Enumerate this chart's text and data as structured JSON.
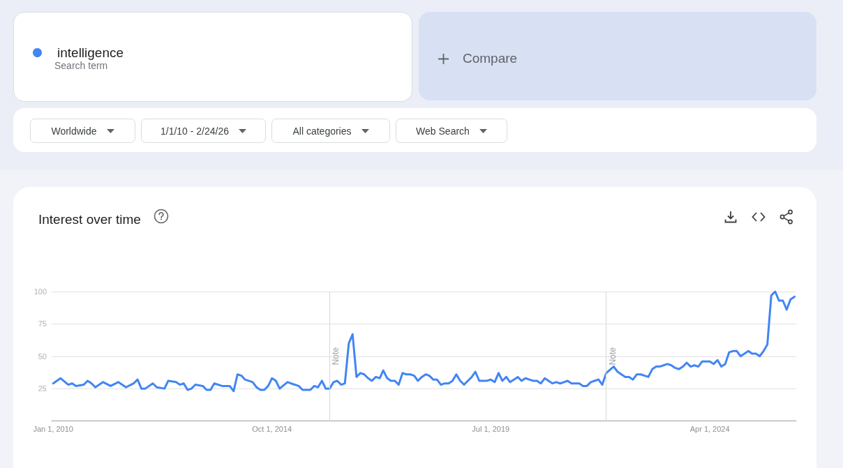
{
  "chart_data": {
    "type": "line",
    "title": "Interest over time",
    "annotations": [
      "Search term",
      "Compare",
      "Worldwide",
      "1/1/10 - 2/24/26",
      "All categories",
      "Web Search"
    ],
    "x": [
      "2010-01",
      "2010-03",
      "2010-05",
      "2010-06",
      "2010-07",
      "2010-09",
      "2010-10",
      "2010-11",
      "2010-12",
      "2011-02",
      "2011-04",
      "2011-06",
      "2011-08",
      "2011-10",
      "2011-11",
      "2011-12",
      "2012-01",
      "2012-03",
      "2012-04",
      "2012-06",
      "2012-07",
      "2012-09",
      "2012-10",
      "2012-11",
      "2012-12",
      "2013-01",
      "2013-02",
      "2013-04",
      "2013-05",
      "2013-06",
      "2013-07",
      "2013-09",
      "2013-11",
      "2013-12",
      "2014-01",
      "2014-02",
      "2014-03",
      "2014-05",
      "2014-06",
      "2014-07",
      "2014-08",
      "2014-09",
      "2014-10",
      "2014-11",
      "2014-12",
      "2015-02",
      "2015-03",
      "2015-05",
      "2015-06",
      "2015-08",
      "2015-09",
      "2015-10",
      "2015-11",
      "2015-12",
      "2016-01",
      "2016-02",
      "2016-03",
      "2016-04",
      "2016-05",
      "2016-06",
      "2016-07",
      "2016-08",
      "2016-09",
      "2016-10",
      "2016-11",
      "2016-12",
      "2017-01",
      "2017-02",
      "2017-03",
      "2017-04",
      "2017-05",
      "2017-06",
      "2017-07",
      "2017-08",
      "2017-09",
      "2017-10",
      "2017-11",
      "2017-12",
      "2018-01",
      "2018-02",
      "2018-03",
      "2018-04",
      "2018-05",
      "2018-06",
      "2018-07",
      "2018-08",
      "2018-09",
      "2018-10",
      "2018-11",
      "2018-12",
      "2019-01",
      "2019-02",
      "2019-03",
      "2019-04",
      "2019-05",
      "2019-06",
      "2019-07",
      "2019-08",
      "2019-09",
      "2019-10",
      "2019-11",
      "2019-12",
      "2020-01",
      "2020-02",
      "2020-03",
      "2020-04",
      "2020-05",
      "2020-06",
      "2020-07",
      "2020-08",
      "2020-09",
      "2020-10",
      "2020-11",
      "2020-12",
      "2021-01",
      "2021-02",
      "2021-03",
      "2021-04",
      "2021-06",
      "2021-07",
      "2021-08",
      "2021-09",
      "2021-10",
      "2021-11",
      "2021-12",
      "2022-01",
      "2022-03",
      "2022-04",
      "2022-05",
      "2022-06",
      "2022-07",
      "2022-08",
      "2022-09",
      "2022-10",
      "2022-11",
      "2022-12",
      "2023-01",
      "2023-02",
      "2023-03",
      "2023-04",
      "2023-05",
      "2023-06",
      "2023-07",
      "2023-08",
      "2023-09",
      "2023-10",
      "2023-11",
      "2023-12",
      "2024-01",
      "2024-02",
      "2024-03",
      "2024-04",
      "2024-05",
      "2024-06",
      "2024-07",
      "2024-08",
      "2024-09",
      "2024-10",
      "2024-11",
      "2024-12",
      "2025-01",
      "2025-02",
      "2025-03",
      "2025-04",
      "2025-05",
      "2025-06",
      "2025-07",
      "2025-08",
      "2025-09",
      "2025-10",
      "2025-11",
      "2025-12",
      "2026-01",
      "2026-02"
    ],
    "series": [
      {
        "name": "intelligence",
        "color": "#4285f4",
        "values": [
          29,
          33,
          28,
          29,
          27,
          28,
          31,
          29,
          26,
          30,
          27,
          30,
          26,
          29,
          32,
          25,
          25,
          29,
          26,
          25,
          31,
          30,
          28,
          29,
          24,
          25,
          28,
          27,
          24,
          24,
          29,
          27,
          27,
          23,
          36,
          35,
          32,
          30,
          26,
          24,
          24,
          27,
          33,
          31,
          25,
          30,
          29,
          27,
          24,
          24,
          27,
          26,
          31,
          25,
          25,
          30,
          31,
          28,
          29,
          60,
          67,
          34,
          37,
          36,
          33,
          31,
          34,
          33,
          39,
          33,
          31,
          31,
          28,
          37,
          36,
          36,
          35,
          31,
          34,
          36,
          35,
          32,
          32,
          28,
          29,
          29,
          31,
          36,
          31,
          28,
          31,
          34,
          38,
          31,
          31,
          31,
          32,
          30,
          37,
          31,
          34,
          30,
          32,
          34,
          31,
          33,
          32,
          31,
          31,
          29,
          33,
          31,
          29,
          30,
          29,
          30,
          31,
          29,
          29,
          27,
          27,
          30,
          31,
          32,
          28,
          37,
          42,
          38,
          36,
          34,
          34,
          32,
          36,
          36,
          35,
          34,
          40,
          42,
          42,
          43,
          44,
          43,
          41,
          40,
          42,
          45,
          42,
          43,
          42,
          46,
          46,
          46,
          44,
          47,
          42,
          44,
          53,
          54,
          54,
          50,
          52,
          54,
          52,
          52,
          50,
          54,
          59,
          97,
          100,
          93,
          93,
          86,
          94,
          96
        ]
      }
    ],
    "xlim": [
      "2009-12-20",
      "2026-02-15"
    ],
    "xticks": [
      {
        "value": "2010-01-01",
        "label": "Jan 1, 2010"
      },
      {
        "value": "2014-10-01",
        "label": "Oct 1, 2014"
      },
      {
        "value": "2019-07-01",
        "label": "Jul 1, 2019"
      },
      {
        "value": "2024-04-01",
        "label": "Apr 1, 2024"
      }
    ],
    "ylim": [
      0,
      100
    ],
    "yticks": [
      25,
      50,
      75,
      100
    ],
    "ref_lines": [
      {
        "axis": "x",
        "value": "2016-01-01",
        "label": "Note"
      },
      {
        "axis": "x",
        "value": "2022-01-01",
        "label": "Note"
      }
    ],
    "grid": "y",
    "legend": "top left",
    "marker": "none",
    "line_style": "solid"
  }
}
